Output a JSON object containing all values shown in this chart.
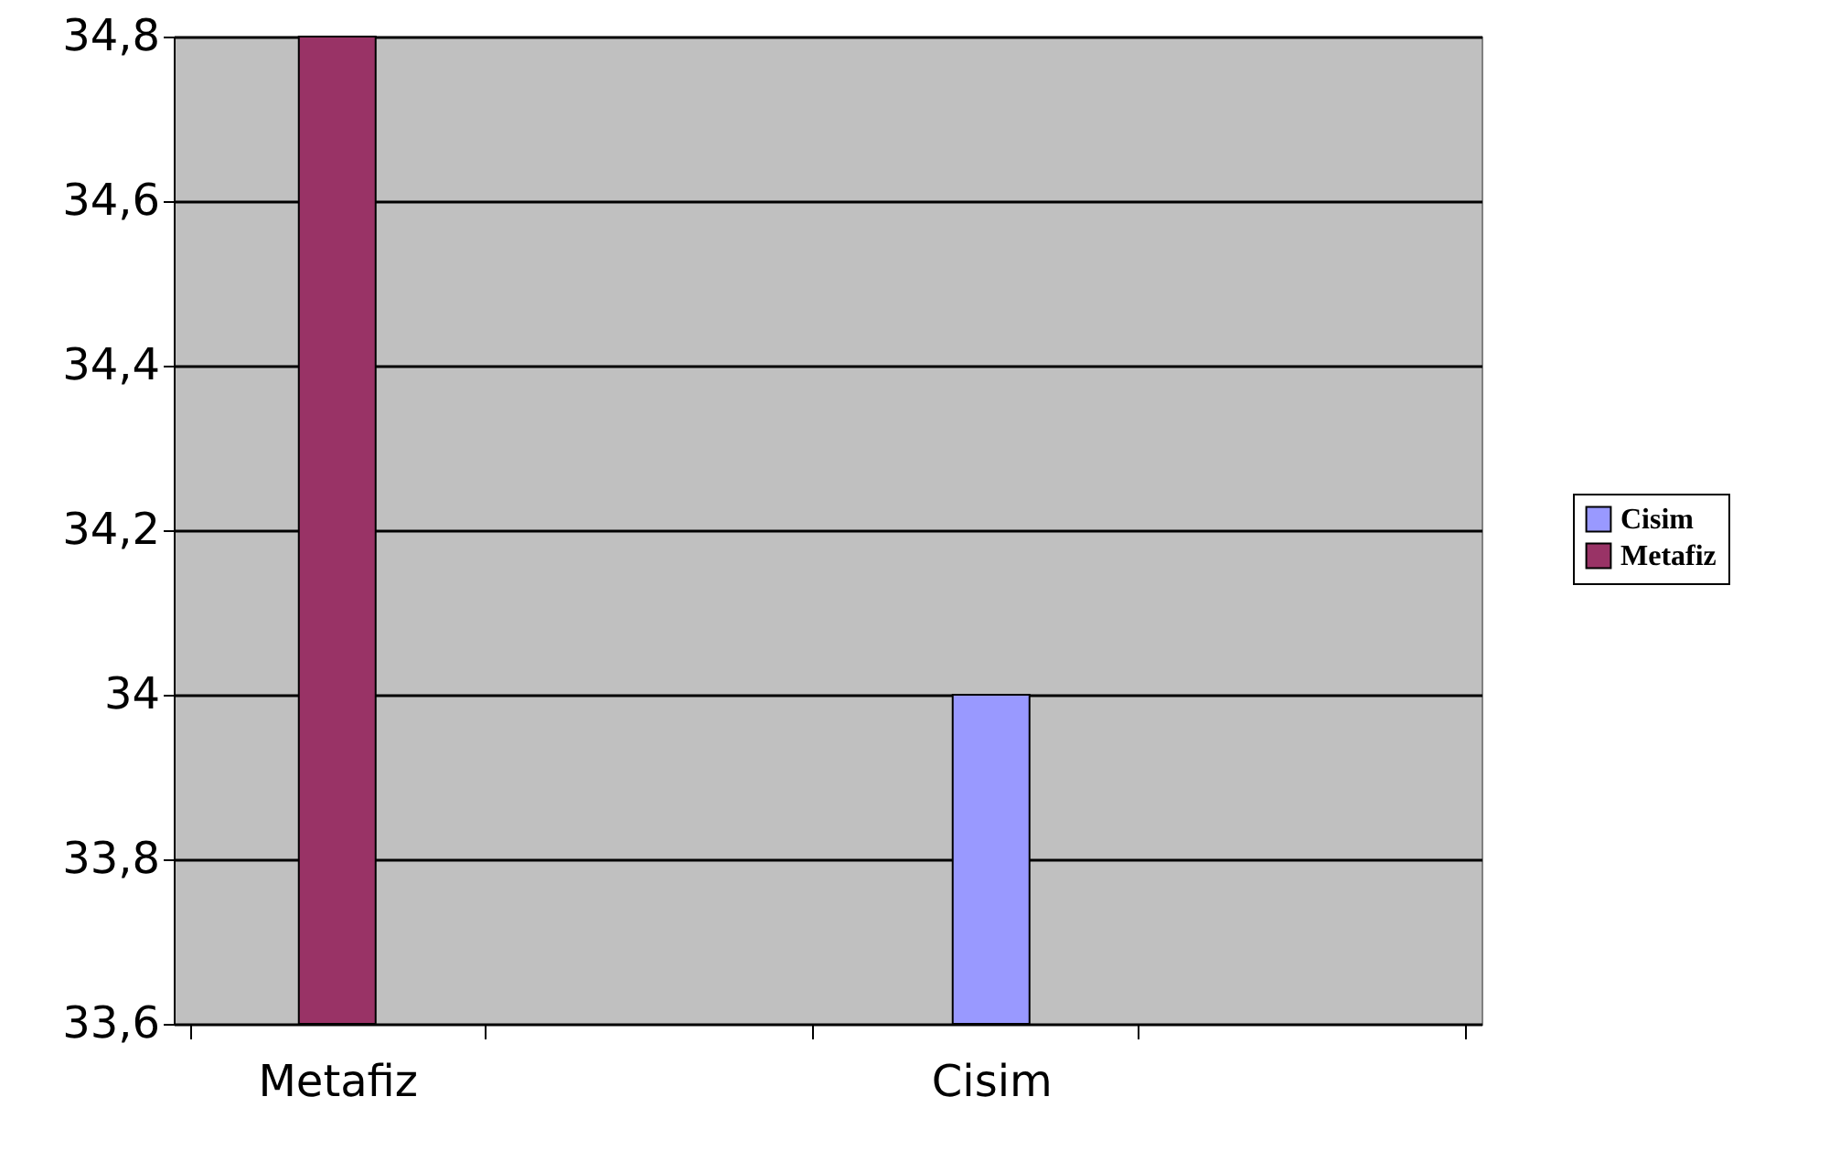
{
  "chart_data": {
    "type": "bar",
    "categories": [
      "Metafiz",
      null,
      "Cisim",
      null
    ],
    "series": [
      {
        "name": "Cisim",
        "color": "#9999ff",
        "values": [
          null,
          null,
          34,
          null
        ]
      },
      {
        "name": "Metafiz",
        "color": "#993366",
        "values": [
          34.8,
          null,
          null,
          null
        ]
      }
    ],
    "ylim": [
      33.6,
      34.8
    ],
    "yticks": [
      {
        "value": 33.6,
        "label": "33,6"
      },
      {
        "value": 33.8,
        "label": "33,8"
      },
      34,
      {
        "value": 34.2,
        "label": "34,2"
      },
      {
        "value": 34.4,
        "label": "34,4"
      },
      {
        "value": 34.6,
        "label": "34,6"
      },
      {
        "value": 34.8,
        "label": "34,8"
      }
    ],
    "grid": "y",
    "legend": "right"
  }
}
